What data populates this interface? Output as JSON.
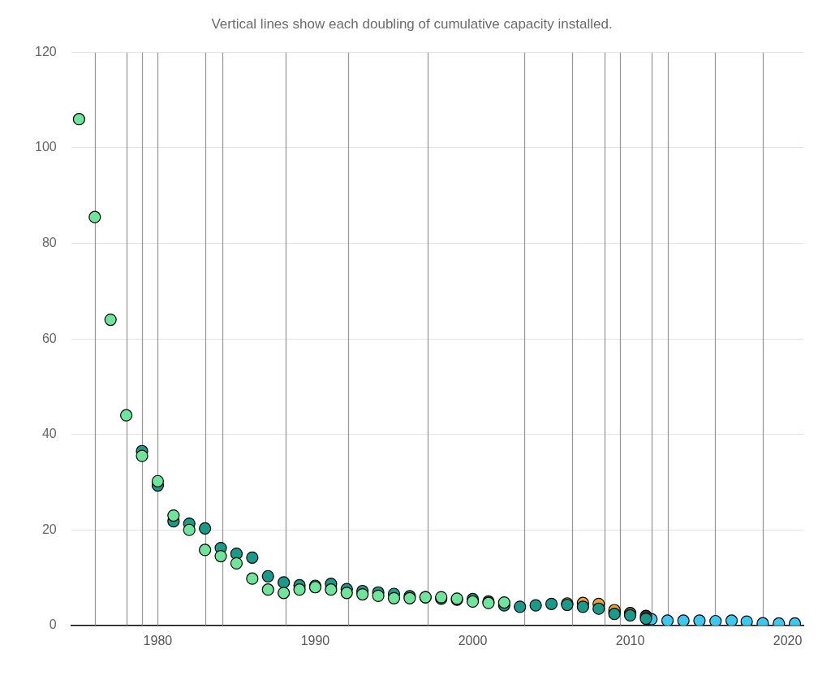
{
  "chart_data": {
    "type": "scatter",
    "subtitle": "Vertical lines show each doubling of cumulative capacity installed.",
    "xlim": [
      1974.5,
      2021
    ],
    "xticks": [
      1980,
      1990,
      2000,
      2010,
      2020
    ],
    "ylim": [
      0,
      120
    ],
    "yticks": [
      0,
      20,
      40,
      60,
      80,
      100,
      120
    ],
    "grid": true,
    "marker": "circle",
    "doublings": [
      1976,
      1978,
      1979,
      1980,
      1983,
      1984.1,
      1988.1,
      1992.1,
      1997.15,
      2003.25,
      2006.3,
      2008.35,
      2009.35,
      2011.35,
      2012.4,
      2015.4,
      2018.4
    ],
    "series": [
      {
        "color": "#6ee59a",
        "x": [
          1975,
          1976,
          1977,
          1978,
          1979,
          1980,
          1981,
          1982,
          1983,
          1984,
          1985,
          1986,
          1987,
          1988,
          1989,
          1990,
          1991,
          1992,
          1993,
          1994,
          1995,
          1996,
          1997,
          1998,
          1999,
          2000,
          2001,
          2002
        ],
        "values": [
          106,
          85.5,
          64,
          44,
          35.5,
          30.2,
          23,
          20,
          15.8,
          14.5,
          13,
          9.8,
          7.5,
          6.8,
          7.5,
          8,
          7.5,
          6.8,
          6.5,
          6.2,
          5.7,
          5.7,
          5.9,
          5.9,
          5.6,
          5.0,
          4.7,
          4.8
        ]
      },
      {
        "color": "#1a9a8a",
        "x": [
          1979,
          1980,
          1981,
          1982,
          1983,
          1984,
          1985,
          1986,
          1987,
          1988,
          1989,
          1990,
          1991,
          1992,
          1993,
          1994,
          1995,
          1996,
          1997,
          1998,
          1999,
          2000,
          2001,
          2002,
          2003,
          2004,
          2005,
          2006,
          2007,
          2008,
          2009,
          2010,
          2011
        ],
        "values": [
          36.5,
          29.3,
          21.8,
          21.3,
          20.3,
          16.2,
          15,
          14.2,
          10.3,
          9,
          8.4,
          8.3,
          8.7,
          7.6,
          7.2,
          6.9,
          6.6,
          6.1,
          5.9,
          5.6,
          5.4,
          5.5,
          5.0,
          4.2,
          3.9,
          4.2,
          4.5,
          4.3,
          3.9,
          3.5,
          2.4,
          2.1,
          1.4
        ]
      },
      {
        "color": "#f0a030",
        "x": [
          2006,
          2007,
          2008,
          2009,
          2010
        ],
        "values": [
          4.6,
          4.7,
          4.5,
          3.2,
          2.5
        ]
      },
      {
        "color": "#333333",
        "x": [
          2009,
          2010,
          2011
        ],
        "values": [
          2.8,
          2.6,
          2.0
        ]
      },
      {
        "color": "#3cc8f0",
        "x": [
          2011.35,
          2012.37,
          2013.38,
          2014.4,
          2015.42,
          2016.44,
          2017.4,
          2018.42,
          2019.44,
          2020.46
        ],
        "values": [
          1.3,
          1.0,
          1.0,
          1.0,
          0.9,
          1.0,
          0.8,
          0.45,
          0.4,
          0.4
        ]
      }
    ]
  }
}
